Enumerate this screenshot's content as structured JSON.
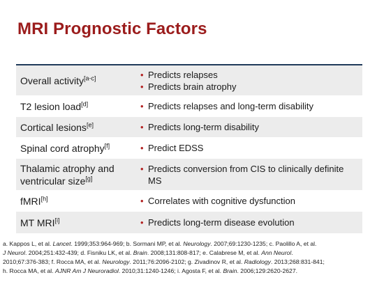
{
  "title": "MRI Prognostic Factors",
  "rows": [
    {
      "factor": "Overall activity",
      "sup": "[a-c]",
      "points": [
        "Predicts relapses",
        "Predicts brain atrophy"
      ]
    },
    {
      "factor": "T2 lesion load",
      "sup": "[d]",
      "points": [
        "Predicts relapses and long-term disability"
      ]
    },
    {
      "factor": "Cortical lesions",
      "sup": "[e]",
      "points": [
        "Predicts long-term disability"
      ]
    },
    {
      "factor": "Spinal cord atrophy",
      "sup": "[f]",
      "points": [
        "Predict EDSS"
      ]
    },
    {
      "factor_line1": "Thalamic atrophy and",
      "factor_line2": "ventricular size",
      "sup": "[g]",
      "points": [
        "Predicts conversion from CIS to clinically definite MS"
      ]
    },
    {
      "factor": "fMRI",
      "sup": "[h]",
      "points": [
        "Correlates with cognitive dysfunction"
      ]
    },
    {
      "factor": "MT MRI",
      "sup": "[i]",
      "points": [
        "Predicts long-term disease evolution"
      ]
    }
  ],
  "references": {
    "line1_a": "a. Kappos L, et al. ",
    "line1_a_j": "Lancet",
    "line1_a_r": ". 1999;353:964-969; b. Sormani MP, et al. ",
    "line1_b_j": "Neurology",
    "line1_b_r": ". 2007;69:1230-1235; c. Paolillo A, et al.",
    "line2_j": "J Neurol",
    "line2_r": ". 2004;251:432-439; d. Fisniku LK, et al. ",
    "line2_b_j": "Brain",
    "line2_b_r": ". 2008;131:808-817; e. Calabrese M, et al. ",
    "line2_c_j": "Ann Neurol",
    "line2_c_r": ".",
    "line3_a": "2010;67:376-383; f. Rocca MA, et al. ",
    "line3_a_j": "Neurology",
    "line3_a_r": ". 2011;76:2096-2102; g. Zivadinov R, et al. ",
    "line3_b_j": "Radiology",
    "line3_b_r": ". 2013;268:831-841;",
    "line4_a": "h. Rocca MA, et al. ",
    "line4_a_j": "AJNR Am J Neuroradiol",
    "line4_a_r": ". 2010;31:1240-1246; i. Agosta F, et al. ",
    "line4_b_j": "Brain",
    "line4_b_r": ". 2006;129:2620-2627."
  }
}
